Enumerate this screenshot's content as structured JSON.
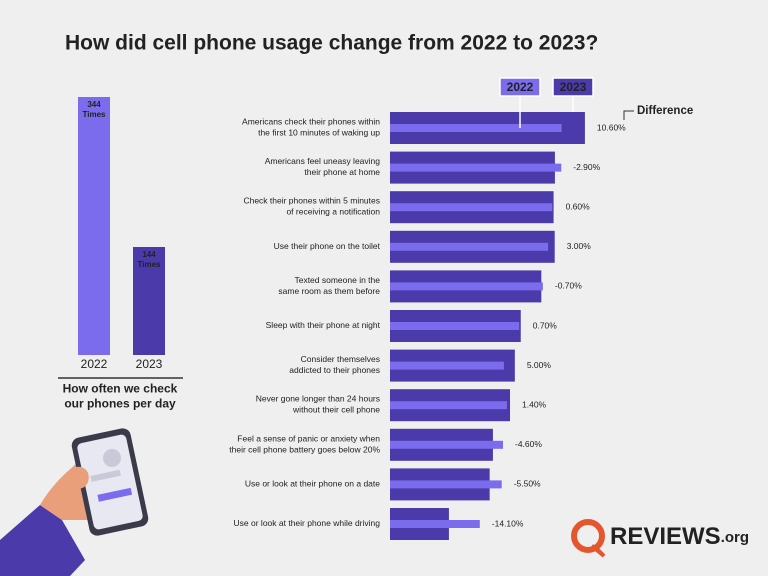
{
  "title": "How did cell phone usage change from 2022 to 2023?",
  "chart_data": [
    {
      "type": "bar",
      "categories": [
        "2022",
        "2023"
      ],
      "values": [
        344,
        144
      ],
      "value_labels": [
        "344 Times",
        "144 Times"
      ],
      "colors": [
        "#7a6cec",
        "#4b3aa9"
      ],
      "caption": [
        "How often we check",
        "our phones per day"
      ]
    },
    {
      "type": "hbar",
      "categories": [
        [
          "Americans check their phones within",
          "the first 10 minutes of waking up"
        ],
        [
          "Americans feel uneasy leaving",
          "their phone at home"
        ],
        [
          "Check their phones within 5 minutes",
          "of receiving a notification"
        ],
        [
          "Use their phone on the toilet"
        ],
        [
          "Texted someone in the",
          "same room as them before"
        ],
        [
          "Sleep with their phone at night"
        ],
        [
          "Consider themselves",
          "addicted to their phones"
        ],
        [
          "Never gone longer than 24 hours",
          "without their cell phone"
        ],
        [
          "Feel a sense of panic or anxiety when",
          "their cell phone battery goes below 20%"
        ],
        [
          "Use or look at their phone on a date"
        ],
        [
          "Use or look at their phone while driving"
        ]
      ],
      "series": [
        {
          "name": "2022",
          "color": "#7a6cec",
          "values": [
            78.4,
            78.2,
            74.1,
            72.2,
            69.8,
            59.0,
            52.0,
            53.4,
            51.6,
            51.0,
            41.0
          ]
        },
        {
          "name": "2023",
          "color": "#4b3aa9",
          "values": [
            89.0,
            75.3,
            74.7,
            75.2,
            69.1,
            59.7,
            57.0,
            54.8,
            47.0,
            45.5,
            26.9
          ]
        }
      ],
      "difference": {
        "name": "Difference",
        "values": [
          10.6,
          -2.9,
          0.6,
          3.0,
          -0.7,
          0.7,
          5.0,
          1.4,
          -4.6,
          -5.5,
          -14.1
        ],
        "value_labels": [
          "10.60%",
          "-2.90%",
          "0.60%",
          "3.00%",
          "-0.70%",
          "0.70%",
          "5.00%",
          "1.40%",
          "-4.60%",
          "-5.50%",
          "-14.10%"
        ]
      }
    }
  ],
  "brand": {
    "name": "REVIEWS",
    "suffix": ".org"
  }
}
